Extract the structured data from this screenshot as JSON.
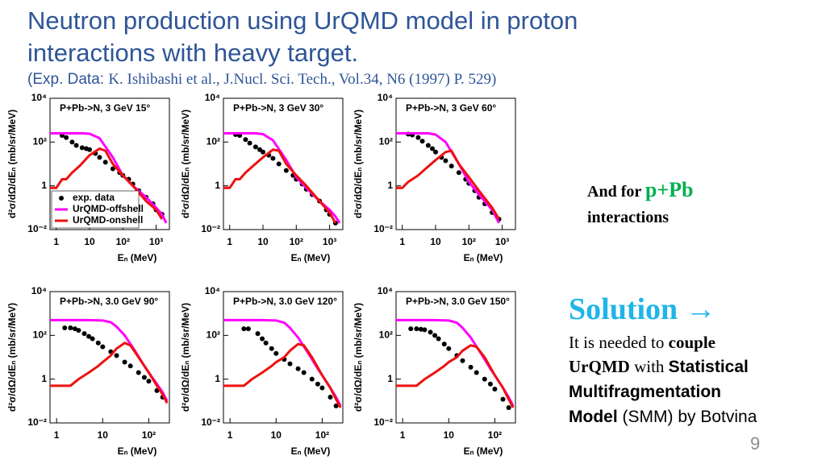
{
  "title": [
    "Neutron production using UrQMD model in proton",
    "interactions with heavy target."
  ],
  "subtitle": [
    "(Exp. Data: ",
    "K. Ishibashi  et al., J.Nucl. Sci. Tech., Vol.34, N6 (1997)  P. 529)"
  ],
  "chart_data": [
    {
      "type": "line",
      "title": "P+Pb->N, 3 GeV 15°",
      "xlabel": "Eₙ (MeV)",
      "ylabel": "d²σ/dΩ/dEₙ (mb/sr/MeV)",
      "log_x": true,
      "log_y": true,
      "legend": "lower left",
      "xlim": [
        0.65,
        2500
      ],
      "xticks": [
        1,
        10,
        {
          "value": 100,
          "label": "10²"
        },
        {
          "value": 1000,
          "label": "10³"
        }
      ],
      "ylim": [
        0.01,
        10000
      ],
      "yticks": [
        {
          "value": 0.01,
          "label": "10⁻²"
        },
        1,
        {
          "value": 100,
          "label": "10²"
        },
        {
          "value": 10000,
          "label": "10⁴"
        }
      ],
      "series": [
        {
          "name": "exp. data",
          "mode": "markers",
          "color": "#000000",
          "x": [
            1.5,
            2,
            3,
            4,
            6,
            8,
            10,
            15,
            20,
            30,
            50,
            80,
            100,
            150,
            200,
            300,
            500,
            800,
            1000,
            1500
          ],
          "values": [
            200,
            160,
            100,
            70,
            55,
            50,
            45,
            30,
            20,
            12,
            6,
            4,
            3,
            2,
            1.2,
            0.6,
            0.3,
            0.15,
            0.08,
            0.05
          ]
        },
        {
          "name": "UrQMD-offshell",
          "mode": "lines",
          "color": "#ff00ff",
          "x": [
            0.65,
            1,
            2,
            4,
            6,
            10,
            20,
            50,
            100,
            200,
            500,
            1000,
            1500,
            2000
          ],
          "values": [
            250,
            250,
            250,
            250,
            250,
            240,
            150,
            20,
            3,
            1,
            0.3,
            0.1,
            0.05,
            0.02
          ]
        },
        {
          "name": "UrQMD-onshell",
          "mode": "lines",
          "color": "#ee1111",
          "x": [
            0.65,
            1,
            1.5,
            2,
            3,
            5,
            10,
            20,
            30,
            50,
            100,
            200,
            500,
            1000,
            1500
          ],
          "values": [
            0.8,
            0.8,
            2,
            2,
            4,
            8,
            25,
            50,
            40,
            10,
            3,
            1,
            0.2,
            0.08,
            0.03
          ]
        }
      ]
    },
    {
      "type": "line",
      "title": "P+Pb->N, 3 GeV 30°",
      "xlabel": "Eₙ (MeV)",
      "ylabel": "d²σ/dΩ/dEₙ (mb/sr/MeV)",
      "log_x": true,
      "log_y": true,
      "xlim": [
        0.65,
        2500
      ],
      "xticks": [
        1,
        10,
        {
          "value": 100,
          "label": "10²"
        },
        {
          "value": 1000,
          "label": "10³"
        }
      ],
      "ylim": [
        0.01,
        10000
      ],
      "yticks": [
        {
          "value": 0.01,
          "label": "10⁻²"
        },
        1,
        {
          "value": 100,
          "label": "10²"
        },
        {
          "value": 10000,
          "label": "10⁴"
        }
      ],
      "series": [
        {
          "mode": "markers",
          "color": "#000000",
          "x": [
            1.5,
            2,
            3,
            4,
            6,
            8,
            10,
            15,
            20,
            30,
            50,
            80,
            100,
            150,
            200,
            300,
            500,
            800,
            1000,
            1500
          ],
          "values": [
            220,
            200,
            130,
            90,
            60,
            45,
            35,
            25,
            18,
            10,
            5,
            3,
            2,
            1.2,
            0.7,
            0.4,
            0.2,
            0.08,
            0.05,
            0.02
          ]
        },
        {
          "mode": "lines",
          "color": "#ff00ff",
          "x": [
            0.65,
            1,
            2,
            4,
            6,
            10,
            20,
            50,
            100,
            200,
            500,
            1000,
            1500,
            2000
          ],
          "values": [
            250,
            250,
            250,
            250,
            250,
            230,
            120,
            15,
            2.5,
            0.8,
            0.2,
            0.08,
            0.04,
            0.02
          ]
        },
        {
          "mode": "lines",
          "color": "#ee1111",
          "x": [
            0.65,
            1,
            1.5,
            2,
            3,
            5,
            10,
            20,
            30,
            50,
            100,
            200,
            500,
            1000,
            1500
          ],
          "values": [
            0.8,
            0.8,
            2,
            2,
            4,
            8,
            20,
            45,
            40,
            10,
            3,
            1,
            0.2,
            0.06,
            0.02
          ]
        }
      ]
    },
    {
      "type": "line",
      "title": "P+Pb->N, 3 GeV 60°",
      "xlabel": "Eₙ (MeV)",
      "ylabel": "d²σ/dΩ/dEₙ (mb/sr/MeV)",
      "log_x": true,
      "log_y": true,
      "xlim": [
        0.65,
        2500
      ],
      "xticks": [
        1,
        10,
        {
          "value": 100,
          "label": "10²"
        },
        {
          "value": 1000,
          "label": "10³"
        }
      ],
      "ylim": [
        0.01,
        10000
      ],
      "yticks": [
        {
          "value": 0.01,
          "label": "10⁻²"
        },
        1,
        {
          "value": 100,
          "label": "10²"
        },
        {
          "value": 10000,
          "label": "10⁴"
        }
      ],
      "series": [
        {
          "mode": "markers",
          "color": "#000000",
          "x": [
            1.5,
            2,
            3,
            4,
            6,
            8,
            10,
            15,
            20,
            30,
            50,
            80,
            100,
            150,
            200,
            300,
            500,
            800
          ],
          "values": [
            230,
            210,
            160,
            110,
            70,
            50,
            35,
            20,
            14,
            8,
            4,
            2,
            1.3,
            0.6,
            0.3,
            0.15,
            0.06,
            0.03
          ]
        },
        {
          "mode": "lines",
          "color": "#ff00ff",
          "x": [
            0.65,
            1,
            2,
            4,
            6,
            10,
            20,
            50,
            100,
            200,
            500,
            800
          ],
          "values": [
            250,
            250,
            250,
            250,
            250,
            220,
            100,
            10,
            1.5,
            0.4,
            0.08,
            0.02
          ]
        },
        {
          "mode": "lines",
          "color": "#ee1111",
          "x": [
            0.65,
            1,
            1.5,
            2,
            3,
            5,
            10,
            20,
            30,
            50,
            100,
            200,
            500,
            800
          ],
          "values": [
            0.8,
            0.8,
            1.5,
            2,
            3,
            6,
            15,
            35,
            40,
            10,
            2.5,
            0.6,
            0.1,
            0.03
          ]
        }
      ]
    },
    {
      "type": "line",
      "title": "P+Pb->N, 3.0 GeV 90°",
      "xlabel": "Eₙ (MeV)",
      "ylabel": "d²σ/dΩ/dEₙ (mb/sr/MeV)",
      "log_x": true,
      "log_y": true,
      "xlim": [
        0.72,
        280
      ],
      "xticks": [
        1,
        10,
        {
          "value": 100,
          "label": "10²"
        }
      ],
      "ylim": [
        0.01,
        10000
      ],
      "yticks": [
        {
          "value": 0.01,
          "label": "10⁻²"
        },
        1,
        {
          "value": 100,
          "label": "10²"
        },
        {
          "value": 10000,
          "label": "10⁴"
        }
      ],
      "series": [
        {
          "mode": "markers",
          "color": "#000000",
          "x": [
            1.5,
            2,
            2.5,
            3,
            4,
            5,
            6,
            8,
            10,
            15,
            20,
            30,
            40,
            60,
            80,
            100,
            150,
            200
          ],
          "values": [
            220,
            220,
            200,
            170,
            120,
            90,
            70,
            45,
            30,
            18,
            12,
            6,
            4,
            2,
            1.2,
            0.8,
            0.3,
            0.15
          ]
        },
        {
          "mode": "lines",
          "color": "#ff00ff",
          "x": [
            0.72,
            1,
            2,
            5,
            10,
            15,
            20,
            30,
            50,
            80,
            100,
            150,
            200,
            250
          ],
          "values": [
            500,
            500,
            500,
            500,
            480,
            400,
            250,
            100,
            20,
            4,
            2,
            0.6,
            0.25,
            0.1
          ]
        },
        {
          "mode": "lines",
          "color": "#ee1111",
          "x": [
            0.72,
            1,
            2,
            3,
            5,
            8,
            10,
            15,
            20,
            30,
            40,
            60,
            100,
            150,
            200,
            250
          ],
          "values": [
            0.5,
            0.5,
            0.5,
            1,
            2,
            4,
            6,
            12,
            25,
            45,
            35,
            10,
            2,
            0.5,
            0.2,
            0.08
          ]
        }
      ]
    },
    {
      "type": "line",
      "title": "P+Pb->N, 3.0 GeV 120°",
      "xlabel": "Eₙ (MeV)",
      "ylabel": "d²σ/dΩ/dEₙ (mb/sr/MeV)",
      "log_x": true,
      "log_y": true,
      "xlim": [
        0.72,
        280
      ],
      "xticks": [
        1,
        10,
        {
          "value": 100,
          "label": "10²"
        }
      ],
      "ylim": [
        0.01,
        10000
      ],
      "yticks": [
        {
          "value": 0.01,
          "label": "10⁻²"
        },
        1,
        {
          "value": 100,
          "label": "10²"
        },
        {
          "value": 10000,
          "label": "10⁴"
        }
      ],
      "series": [
        {
          "mode": "markers",
          "color": "#000000",
          "x": [
            2,
            2.5,
            4,
            5,
            6,
            8,
            10,
            15,
            20,
            30,
            40,
            60,
            80,
            100,
            150,
            200
          ],
          "values": [
            200,
            200,
            120,
            70,
            45,
            25,
            15,
            8,
            5,
            3,
            2,
            1,
            0.6,
            0.4,
            0.15,
            0.06
          ]
        },
        {
          "mode": "lines",
          "color": "#ff00ff",
          "x": [
            0.72,
            1,
            2,
            5,
            10,
            15,
            20,
            30,
            50,
            80,
            100,
            150,
            200,
            250
          ],
          "values": [
            500,
            500,
            500,
            500,
            480,
            380,
            220,
            80,
            15,
            3,
            1.5,
            0.4,
            0.15,
            0.06
          ]
        },
        {
          "mode": "lines",
          "color": "#ee1111",
          "x": [
            0.72,
            1,
            2,
            3,
            5,
            8,
            10,
            15,
            20,
            30,
            40,
            60,
            100,
            150,
            200,
            250
          ],
          "values": [
            0.5,
            0.5,
            0.5,
            1,
            2,
            4,
            6,
            10,
            20,
            40,
            35,
            10,
            1.5,
            0.4,
            0.12,
            0.05
          ]
        }
      ]
    },
    {
      "type": "line",
      "title": "P+Pb->N, 3.0 GeV 150°",
      "xlabel": "Eₙ (MeV)",
      "ylabel": "d²σ/dΩ/dEₙ (mb/sr/MeV)",
      "log_x": true,
      "log_y": true,
      "xlim": [
        0.72,
        280
      ],
      "xticks": [
        1,
        10,
        {
          "value": 100,
          "label": "10²"
        }
      ],
      "ylim": [
        0.01,
        10000
      ],
      "yticks": [
        {
          "value": 0.01,
          "label": "10⁻²"
        },
        1,
        {
          "value": 100,
          "label": "10²"
        },
        {
          "value": 10000,
          "label": "10⁴"
        }
      ],
      "series": [
        {
          "mode": "markers",
          "color": "#000000",
          "x": [
            1.5,
            2,
            2.5,
            3,
            4,
            5,
            6,
            8,
            10,
            15,
            20,
            30,
            40,
            60,
            80,
            100,
            150,
            200
          ],
          "values": [
            200,
            200,
            190,
            180,
            140,
            100,
            70,
            40,
            25,
            12,
            7,
            3.5,
            2,
            1,
            0.6,
            0.35,
            0.12,
            0.05
          ]
        },
        {
          "mode": "lines",
          "color": "#ff00ff",
          "x": [
            0.72,
            1,
            2,
            5,
            10,
            15,
            20,
            30,
            50,
            80,
            100,
            150,
            200,
            250
          ],
          "values": [
            500,
            500,
            500,
            500,
            480,
            380,
            220,
            80,
            15,
            3,
            1.5,
            0.4,
            0.15,
            0.06
          ]
        },
        {
          "mode": "lines",
          "color": "#ee1111",
          "x": [
            0.72,
            1,
            2,
            3,
            5,
            8,
            10,
            15,
            20,
            30,
            40,
            60,
            100,
            150,
            200,
            250
          ],
          "values": [
            0.5,
            0.5,
            0.5,
            1,
            2,
            4,
            6,
            10,
            20,
            35,
            30,
            10,
            1.5,
            0.4,
            0.12,
            0.05
          ]
        }
      ]
    }
  ],
  "note": {
    "line1": "And for ",
    "highlight": "p+Pb",
    "line2": "interactions"
  },
  "solution": {
    "heading": "Solution →",
    "parts": [
      "It is needed to ",
      "couple",
      "UrQMD",
      " with ",
      "Statistical",
      "Multifragmentation",
      "Model",
      " (SMM) by Botvina"
    ]
  },
  "page_number": 9
}
